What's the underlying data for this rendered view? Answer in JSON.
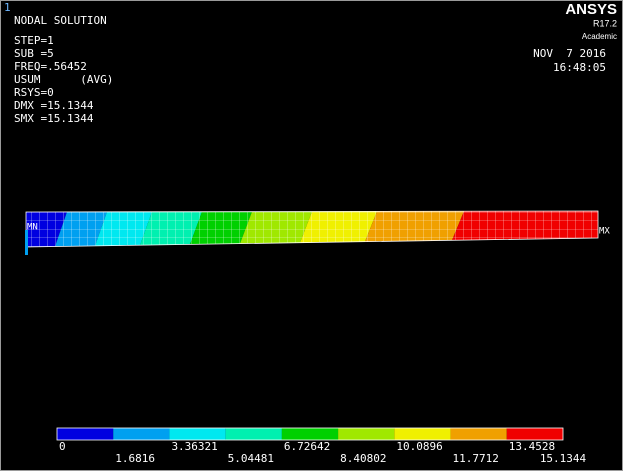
{
  "window_number": "1",
  "title": "NODAL SOLUTION",
  "info_lines": [
    "STEP=1",
    "SUB =5",
    "FREQ=.56452",
    "USUM      (AVG)",
    "RSYS=0",
    "DMX =15.1344",
    "SMX =15.1344"
  ],
  "logo": {
    "name": "ANSYS",
    "version": "R17.2",
    "edition": "Academic"
  },
  "date": "NOV  7 2016",
  "time": "16:48:05",
  "markers": {
    "min": "MN",
    "max": "MX"
  },
  "legend": {
    "colors": [
      "#0000e0",
      "#00a0f0",
      "#00e8f0",
      "#00f0b0",
      "#00d000",
      "#a0e800",
      "#f0f000",
      "#f0a000",
      "#f00000"
    ],
    "labels": [
      "0",
      "1.6816",
      "3.36321",
      "5.04481",
      "6.72642",
      "8.40802",
      "10.0896",
      "11.7712",
      "13.4528",
      "15.1344"
    ]
  }
}
